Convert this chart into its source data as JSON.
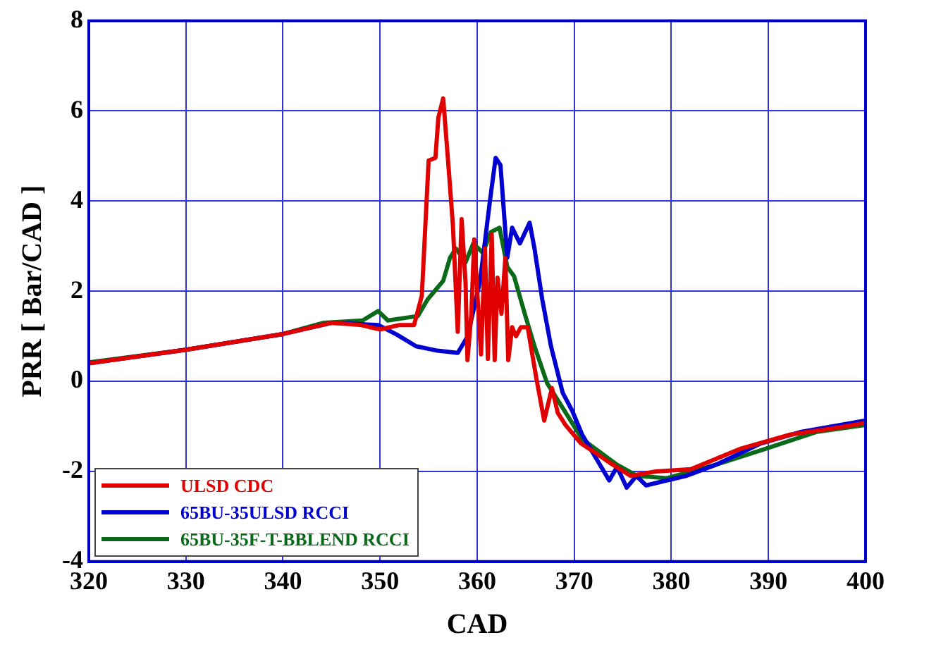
{
  "chart_data": {
    "type": "line",
    "xlabel": "CAD",
    "ylabel": "PRR [ Bar/CAD ]",
    "xlim": [
      320,
      400
    ],
    "xticks": [
      320,
      330,
      340,
      350,
      360,
      370,
      380,
      390,
      400
    ],
    "ylim": [
      -4,
      8
    ],
    "yticks": [
      -4,
      -2,
      0,
      2,
      4,
      6,
      8
    ],
    "grid": true,
    "legend": "bottom left",
    "marker": "none",
    "line_style": "solid",
    "series": [
      {
        "name": "ULSD CDC",
        "color": "#e00000",
        "x": [
          320,
          330,
          340,
          345,
          348,
          350,
          352,
          353.5,
          354.3,
          355,
          355.7,
          356,
          356.5,
          357,
          357.5,
          358,
          358.4,
          358.8,
          359,
          359.4,
          359.7,
          360,
          360.4,
          360.8,
          361.1,
          361.5,
          361.8,
          362.1,
          362.5,
          362.9,
          363.2,
          363.6,
          364,
          364.5,
          365.2,
          366.1,
          366.9,
          367.7,
          368.3,
          369.1,
          370.7,
          372.2,
          373.6,
          375.8,
          378.4,
          382,
          387.2,
          392.3,
          397.4,
          400
        ],
        "values": [
          0.4,
          0.7,
          1.05,
          1.3,
          1.25,
          1.15,
          1.25,
          1.25,
          1.9,
          4.9,
          4.96,
          5.85,
          6.28,
          4.9,
          3.47,
          1.1,
          3.6,
          2.2,
          0.47,
          1.5,
          3.15,
          2.0,
          0.6,
          2.95,
          0.5,
          3.26,
          0.47,
          2.3,
          1.5,
          2.74,
          0.47,
          1.2,
          1.0,
          1.2,
          1.2,
          0.06,
          -0.87,
          -0.15,
          -0.7,
          -0.97,
          -1.38,
          -1.59,
          -1.8,
          -2.1,
          -2.0,
          -1.95,
          -1.49,
          -1.18,
          -1.02,
          -0.92
        ]
      },
      {
        "name": "65BU-35ULSD RCCI",
        "color": "#0000d0",
        "x": [
          320,
          330,
          340,
          345,
          349.8,
          351.7,
          353.7,
          355.9,
          358,
          359,
          360.3,
          361.3,
          361.9,
          362.4,
          363.1,
          363.6,
          364.4,
          365.4,
          365.9,
          366.7,
          367.6,
          368.8,
          369.8,
          370.8,
          373.6,
          374.4,
          375.4,
          376.4,
          377.4,
          379.5,
          381.5,
          384.6,
          389.2,
          393.4,
          400
        ],
        "values": [
          0.4,
          0.7,
          1.05,
          1.3,
          1.25,
          1.04,
          0.78,
          0.68,
          0.63,
          0.99,
          2.23,
          3.98,
          4.96,
          4.8,
          2.74,
          3.41,
          3.06,
          3.52,
          2.95,
          1.82,
          0.78,
          -0.25,
          -0.66,
          -1.18,
          -2.2,
          -1.9,
          -2.36,
          -2.1,
          -2.31,
          -2.2,
          -2.1,
          -1.85,
          -1.38,
          -1.12,
          -0.87
        ]
      },
      {
        "name": "65BU-35F-T-BBLEND RCCI",
        "color": "#0a6a1a",
        "x": [
          320,
          330,
          340,
          344.2,
          348.2,
          349.8,
          350.8,
          353.9,
          354.9,
          356.5,
          357.2,
          357.8,
          358.8,
          359.6,
          360.6,
          361.4,
          362.3,
          363.1,
          363.8,
          364.9,
          365.9,
          367.2,
          369.3,
          370.8,
          374.4,
          376.5,
          379.5,
          384.6,
          389.8,
          395,
          400
        ],
        "values": [
          0.42,
          0.7,
          1.05,
          1.3,
          1.35,
          1.56,
          1.35,
          1.45,
          1.82,
          2.23,
          2.74,
          2.95,
          2.64,
          3.06,
          2.85,
          3.31,
          3.41,
          2.54,
          2.33,
          1.5,
          0.78,
          -0.04,
          -0.76,
          -1.28,
          -1.85,
          -2.1,
          -2.15,
          -1.85,
          -1.49,
          -1.12,
          -0.97
        ]
      }
    ]
  }
}
